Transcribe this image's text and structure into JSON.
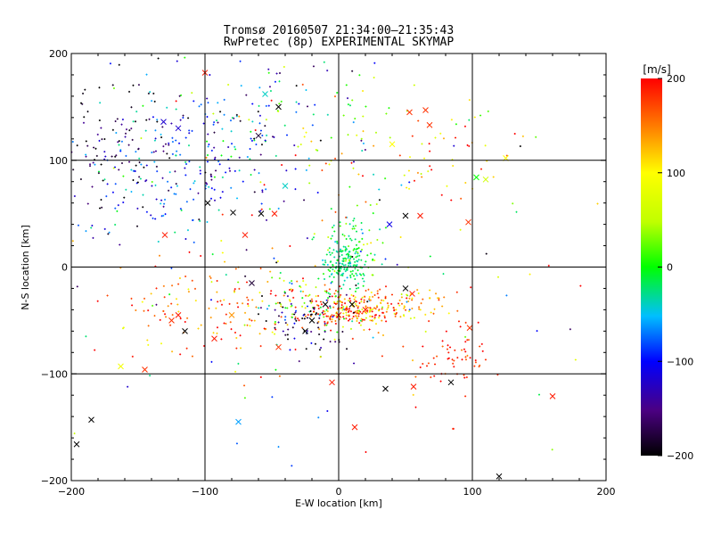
{
  "chart_data": {
    "type": "scatter",
    "title": "Tromsø 20160507 21:34:00–21:35:43",
    "subtitle": "RwPretec (8p) EXPERIMENTAL SKYMAP",
    "xlabel": "E-W location [km]",
    "ylabel": "N-S location [km]",
    "xlim": [
      -200,
      200
    ],
    "ylim": [
      -200,
      200
    ],
    "xticks": [
      "−200",
      "−100",
      "0",
      "100",
      "200"
    ],
    "yticks": [
      "−200",
      "−100",
      "0",
      "100",
      "200"
    ],
    "grid": true,
    "colorbar": {
      "label": "[m/s]",
      "range": [
        -200,
        200
      ],
      "ticks": [
        "200",
        "100",
        "0",
        "−100",
        "−200"
      ]
    },
    "clusters": [
      {
        "cx": -125,
        "cy": 95,
        "sx": 45,
        "sy": 35,
        "n": 260,
        "v": -95,
        "vs": 55
      },
      {
        "cx": 5,
        "cy": 5,
        "sx": 8,
        "sy": 12,
        "n": 170,
        "v": -20,
        "vs": 15
      },
      {
        "cx": 8,
        "cy": -40,
        "sx": 18,
        "sy": 8,
        "n": 200,
        "v": 150,
        "vs": 70
      },
      {
        "cx": 40,
        "cy": -35,
        "sx": 22,
        "sy": 8,
        "n": 90,
        "v": 140,
        "vs": 40
      },
      {
        "cx": -100,
        "cy": -40,
        "sx": 40,
        "sy": 25,
        "n": 120,
        "v": 160,
        "vs": 40
      },
      {
        "cx": -30,
        "cy": -35,
        "sx": 22,
        "sy": 18,
        "n": 100,
        "v": 20,
        "vs": 120
      },
      {
        "cx": 90,
        "cy": -85,
        "sx": 15,
        "sy": 15,
        "n": 60,
        "v": 185,
        "vs": 20
      },
      {
        "cx": -40,
        "cy": 140,
        "sx": 45,
        "sy": 35,
        "n": 110,
        "v": -60,
        "vs": 90
      },
      {
        "cx": 50,
        "cy": 100,
        "sx": 40,
        "sy": 30,
        "n": 80,
        "v": 110,
        "vs": 70
      },
      {
        "cx": -170,
        "cy": 120,
        "sx": 25,
        "sy": 40,
        "n": 80,
        "v": -180,
        "vs": 30
      },
      {
        "cx": -25,
        "cy": -55,
        "sx": 15,
        "sy": 12,
        "n": 60,
        "v": -170,
        "vs": 40
      },
      {
        "cx": 10,
        "cy": 20,
        "sx": 15,
        "sy": 20,
        "n": 60,
        "v": 0,
        "vs": 40
      },
      {
        "cx": 0,
        "cy": 0,
        "sx": 110,
        "sy": 100,
        "n": 140,
        "v": 40,
        "vs": 150
      }
    ],
    "crosses": [
      {
        "x": -196,
        "y": -166,
        "v": -200
      },
      {
        "x": -163,
        "y": -93,
        "v": 90
      },
      {
        "x": -145,
        "y": -96,
        "v": 180
      },
      {
        "x": -185,
        "y": -143,
        "v": -200
      },
      {
        "x": -75,
        "y": -145,
        "v": -60
      },
      {
        "x": -120,
        "y": 130,
        "v": -120
      },
      {
        "x": -131,
        "y": 136,
        "v": -120
      },
      {
        "x": -100,
        "y": 182,
        "v": 190
      },
      {
        "x": 65,
        "y": 147,
        "v": 180
      },
      {
        "x": 53,
        "y": 145,
        "v": 180
      },
      {
        "x": 68,
        "y": 133,
        "v": 180
      },
      {
        "x": -45,
        "y": 150,
        "v": -200
      },
      {
        "x": -60,
        "y": 123,
        "v": -180
      },
      {
        "x": -55,
        "y": 162,
        "v": -40
      },
      {
        "x": 40,
        "y": 115,
        "v": 100
      },
      {
        "x": 103,
        "y": 84,
        "v": 0
      },
      {
        "x": 110,
        "y": 82,
        "v": 60
      },
      {
        "x": 125,
        "y": 102,
        "v": 100
      },
      {
        "x": 50,
        "y": 48,
        "v": -200
      },
      {
        "x": 61,
        "y": 48,
        "v": 190
      },
      {
        "x": 97,
        "y": 42,
        "v": 180
      },
      {
        "x": 38,
        "y": 40,
        "v": -110
      },
      {
        "x": -98,
        "y": 60,
        "v": -200
      },
      {
        "x": -79,
        "y": 51,
        "v": -200
      },
      {
        "x": -58,
        "y": 50,
        "v": -200
      },
      {
        "x": -48,
        "y": 50,
        "v": 190
      },
      {
        "x": -40,
        "y": 76,
        "v": -40
      },
      {
        "x": -130,
        "y": 30,
        "v": 190
      },
      {
        "x": -70,
        "y": 30,
        "v": 190
      },
      {
        "x": -120,
        "y": -45,
        "v": 190
      },
      {
        "x": -115,
        "y": -60,
        "v": -200
      },
      {
        "x": -125,
        "y": -50,
        "v": 180
      },
      {
        "x": -80,
        "y": -45,
        "v": 140
      },
      {
        "x": -45,
        "y": -75,
        "v": 180
      },
      {
        "x": -93,
        "y": -67,
        "v": 190
      },
      {
        "x": -65,
        "y": -15,
        "v": -180
      },
      {
        "x": -25,
        "y": -60,
        "v": -200
      },
      {
        "x": -20,
        "y": -50,
        "v": -200
      },
      {
        "x": 12,
        "y": -150,
        "v": 190
      },
      {
        "x": -5,
        "y": -108,
        "v": 190
      },
      {
        "x": 35,
        "y": -114,
        "v": -200
      },
      {
        "x": 56,
        "y": -112,
        "v": 190
      },
      {
        "x": 84,
        "y": -108,
        "v": -200
      },
      {
        "x": 120,
        "y": -196,
        "v": -200
      },
      {
        "x": 160,
        "y": -121,
        "v": 190
      },
      {
        "x": 98,
        "y": -57,
        "v": 180
      },
      {
        "x": 50,
        "y": -20,
        "v": -200
      },
      {
        "x": 55,
        "y": -25,
        "v": 190
      },
      {
        "x": 20,
        "y": -40,
        "v": 190
      },
      {
        "x": 10,
        "y": -35,
        "v": -200
      },
      {
        "x": -10,
        "y": -35,
        "v": -200
      },
      {
        "x": 0,
        "y": -45,
        "v": 190
      }
    ]
  }
}
